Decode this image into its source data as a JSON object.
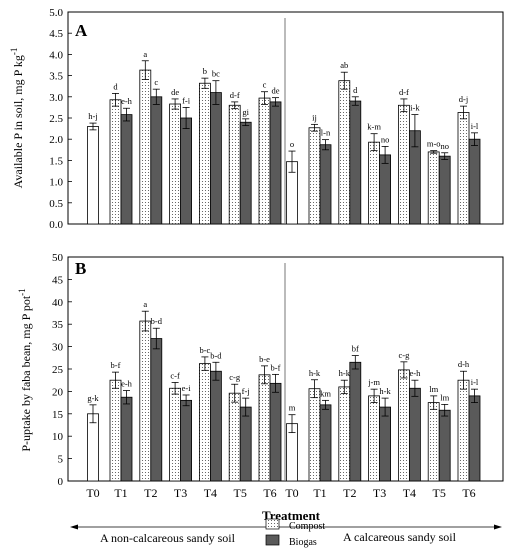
{
  "chart_data": [
    {
      "type": "bar",
      "panel_label": "A",
      "ylabel": "Available P in soil, mg P kg",
      "ylabel_sup": "-1",
      "ylim": [
        0,
        5
      ],
      "yticks": [
        "0.0",
        "0.5",
        "1.0",
        "1.5",
        "2.0",
        "2.5",
        "3.0",
        "3.5",
        "4.0",
        "4.5",
        "5.0"
      ],
      "groups": [
        {
          "soil": "non-calcareous",
          "control": {
            "value": 2.3,
            "err": 0.08,
            "label": "h-j"
          },
          "treatments": [
            {
              "compost": 2.93,
              "compost_err": 0.15,
              "compost_label": "d",
              "biogas": 2.58,
              "biogas_err": 0.15,
              "biogas_label": "e-h"
            },
            {
              "compost": 3.63,
              "compost_err": 0.22,
              "compost_label": "a",
              "biogas": 3.0,
              "biogas_err": 0.18,
              "biogas_label": "c"
            },
            {
              "compost": 2.83,
              "compost_err": 0.12,
              "compost_label": "de",
              "biogas": 2.5,
              "biogas_err": 0.25,
              "biogas_label": "f-i"
            },
            {
              "compost": 3.32,
              "compost_err": 0.12,
              "compost_label": "b",
              "biogas": 3.1,
              "biogas_err": 0.28,
              "biogas_label": "bc"
            },
            {
              "compost": 2.8,
              "compost_err": 0.08,
              "compost_label": "d-f",
              "biogas": 2.4,
              "biogas_err": 0.08,
              "biogas_label": "gi"
            },
            {
              "compost": 2.97,
              "compost_err": 0.15,
              "compost_label": "c",
              "biogas": 2.88,
              "biogas_err": 0.1,
              "biogas_label": "de"
            }
          ]
        },
        {
          "soil": "calcareous",
          "control": {
            "value": 1.47,
            "err": 0.25,
            "label": "o"
          },
          "treatments": [
            {
              "compost": 2.27,
              "compost_err": 0.08,
              "compost_label": "ij",
              "biogas": 1.87,
              "biogas_err": 0.12,
              "biogas_label": "l-n"
            },
            {
              "compost": 3.38,
              "compost_err": 0.2,
              "compost_label": "ab",
              "biogas": 2.9,
              "biogas_err": 0.1,
              "biogas_label": "d"
            },
            {
              "compost": 1.93,
              "compost_err": 0.2,
              "compost_label": "k-m",
              "biogas": 1.63,
              "biogas_err": 0.2,
              "biogas_label": "no"
            },
            {
              "compost": 2.8,
              "compost_err": 0.15,
              "compost_label": "d-f",
              "biogas": 2.2,
              "biogas_err": 0.38,
              "biogas_label": "i-k"
            },
            {
              "compost": 1.7,
              "compost_err": 0.03,
              "compost_label": "m-o",
              "biogas": 1.6,
              "biogas_err": 0.08,
              "biogas_label": "no"
            },
            {
              "compost": 2.63,
              "compost_err": 0.15,
              "compost_label": "d-j",
              "biogas": 2.0,
              "biogas_err": 0.15,
              "biogas_label": "i-l"
            }
          ]
        }
      ]
    },
    {
      "type": "bar",
      "panel_label": "B",
      "ylabel": "P-uptake by faba bean, mg P pot",
      "ylabel_sup": "-1",
      "ylim": [
        0,
        50
      ],
      "yticks": [
        "0",
        "5",
        "10",
        "15",
        "20",
        "25",
        "30",
        "35",
        "40",
        "45",
        "50"
      ],
      "groups": [
        {
          "soil": "non-calcareous",
          "control": {
            "value": 15.0,
            "err": 2.0,
            "label": "g-k"
          },
          "treatments": [
            {
              "compost": 22.5,
              "compost_err": 1.8,
              "compost_label": "b-f",
              "biogas": 18.7,
              "biogas_err": 1.5,
              "biogas_label": "e-h"
            },
            {
              "compost": 35.7,
              "compost_err": 2.2,
              "compost_label": "a",
              "biogas": 31.8,
              "biogas_err": 2.3,
              "biogas_label": "b-d"
            },
            {
              "compost": 20.7,
              "compost_err": 1.3,
              "compost_label": "c-f",
              "biogas": 18.0,
              "biogas_err": 1.2,
              "biogas_label": "e-i"
            },
            {
              "compost": 26.2,
              "compost_err": 1.5,
              "compost_label": "b-c",
              "biogas": 24.5,
              "biogas_err": 2.0,
              "biogas_label": "b-d"
            },
            {
              "compost": 19.6,
              "compost_err": 2.0,
              "compost_label": "c-g",
              "biogas": 16.5,
              "biogas_err": 2.0,
              "biogas_label": "f-j"
            },
            {
              "compost": 23.7,
              "compost_err": 2.0,
              "compost_label": "b-e",
              "biogas": 21.8,
              "biogas_err": 2.0,
              "biogas_label": "b-f"
            }
          ]
        },
        {
          "soil": "calcareous",
          "control": {
            "value": 12.8,
            "err": 2.0,
            "label": "m"
          },
          "treatments": [
            {
              "compost": 20.6,
              "compost_err": 2.0,
              "compost_label": "h-k",
              "biogas": 17.0,
              "biogas_err": 1.0,
              "biogas_label": "km"
            },
            {
              "compost": 21.0,
              "compost_err": 1.5,
              "compost_label": "h-k",
              "biogas": 26.5,
              "biogas_err": 1.5,
              "biogas_label": "bf"
            },
            {
              "compost": 19.0,
              "compost_err": 1.5,
              "compost_label": "j-m",
              "biogas": 16.5,
              "biogas_err": 2.0,
              "biogas_label": "h-k"
            },
            {
              "compost": 24.8,
              "compost_err": 1.8,
              "compost_label": "c-g",
              "biogas": 20.7,
              "biogas_err": 1.8,
              "biogas_label": "e-h"
            },
            {
              "compost": 17.5,
              "compost_err": 1.5,
              "compost_label": "lm",
              "biogas": 15.8,
              "biogas_err": 1.3,
              "biogas_label": "lm"
            },
            {
              "compost": 22.5,
              "compost_err": 2.0,
              "compost_label": "d-h",
              "biogas": 19.0,
              "biogas_err": 1.5,
              "biogas_label": "i-l"
            }
          ]
        }
      ]
    }
  ],
  "x_tick_labels": [
    "T0",
    "T1",
    "T2",
    "T3",
    "T4",
    "T5",
    "T6",
    "T0",
    "T1",
    "T2",
    "T3",
    "T4",
    "T5",
    "T6"
  ],
  "xlabel": "Treatment",
  "soil_labels": {
    "left": "A non-calcareous sandy soil",
    "right": "A calcareous sandy soil"
  },
  "legend": [
    {
      "name": "Compost",
      "pattern": "dotted"
    },
    {
      "name": "Biogas",
      "color": "#555555"
    }
  ],
  "colors": {
    "control": "#ffffff",
    "compost": "#f4f4f4",
    "biogas": "#5a5a5a"
  }
}
